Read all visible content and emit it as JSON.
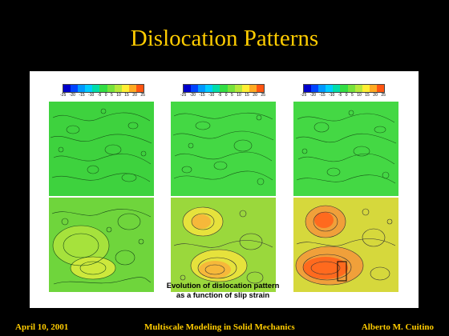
{
  "slide": {
    "title": "Dislocation Patterns",
    "caption_line1": "Evolution of dislocation pattern",
    "caption_line2": "as a function of slip strain",
    "footer_left": "April 10, 2001",
    "footer_center": "Multiscale Modeling in Solid Mechanics",
    "footer_right": "Alberto M. Cuitino"
  },
  "colorbars": [
    {
      "ticks": [
        "-25",
        "-20",
        "-15",
        "-10",
        "-5",
        "0",
        "5",
        "10",
        "15",
        "20",
        "25"
      ]
    },
    {
      "ticks": [
        "-25",
        "-20",
        "-15",
        "-10",
        "-5",
        "0",
        "5",
        "10",
        "15",
        "20",
        "25"
      ]
    },
    {
      "ticks": [
        "-25",
        "-20",
        "-15",
        "-10",
        "-5",
        "0",
        "5",
        "10",
        "15",
        "20",
        "25"
      ]
    }
  ],
  "colors": {
    "background": "#000000",
    "title": "#ffcc00",
    "footer": "#ffcc00",
    "panel": "#ffffff",
    "scale": [
      "#0000cc",
      "#0044ff",
      "#0099ff",
      "#00ccff",
      "#00ddaa",
      "#33dd44",
      "#77e23a",
      "#b6e83a",
      "#ffee33",
      "#ffaa22",
      "#ff5511"
    ]
  },
  "maps": [
    {
      "name": "top-left",
      "base": "#3ed23e",
      "blobs": []
    },
    {
      "name": "top-middle",
      "base": "#44d844",
      "blobs": []
    },
    {
      "name": "top-right",
      "base": "#44d844",
      "blobs": []
    },
    {
      "name": "bottom-left",
      "base": "#6fd53c",
      "blobs": [
        "#a6e23c",
        "#cde83c"
      ]
    },
    {
      "name": "bottom-middle",
      "base": "#9ad83c",
      "blobs": [
        "#e6e23c",
        "#f6b83a"
      ]
    },
    {
      "name": "bottom-right",
      "base": "#d6d83c",
      "blobs": [
        "#f0a03a",
        "#ff6a1e"
      ]
    }
  ]
}
